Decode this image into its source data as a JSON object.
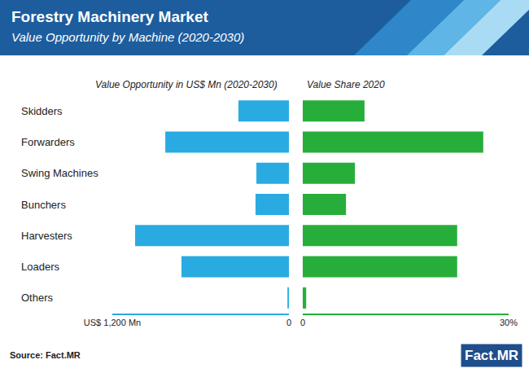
{
  "title": "Forestry Machinery Market",
  "subtitle": "Value Opportunity by Machine (2020-2030)",
  "source": "Source: Fact.MR",
  "logo": "Fact.MR",
  "chart_data": [
    {
      "type": "bar",
      "orientation": "horizontal",
      "title": "Value Opportunity in US$ Mn (2020-2030)",
      "categories": [
        "Skidders",
        "Forwarders",
        "Swing Machines",
        "Bunchers",
        "Harvesters",
        "Loaders",
        "Others"
      ],
      "values": [
        343,
        840,
        221,
        227,
        1045,
        730,
        10
      ],
      "color": "#29abe2",
      "xlim": [
        1200,
        0
      ],
      "xticks": [
        {
          "value": 1200,
          "label": "US$ 1,200 Mn"
        },
        0
      ],
      "grid": false
    },
    {
      "type": "bar",
      "orientation": "horizontal",
      "title": "Value Share 2020",
      "categories": [
        "Skidders",
        "Forwarders",
        "Swing Machines",
        "Bunchers",
        "Harvesters",
        "Loaders",
        "Others"
      ],
      "values": [
        9.0,
        26.3,
        7.6,
        6.3,
        22.5,
        22.5,
        0.5
      ],
      "color": "#27ae3a",
      "xlim": [
        0,
        30
      ],
      "xticks": [
        0,
        {
          "value": 30,
          "label": "30%"
        }
      ],
      "tick_labels": "x",
      "grid": false
    }
  ]
}
